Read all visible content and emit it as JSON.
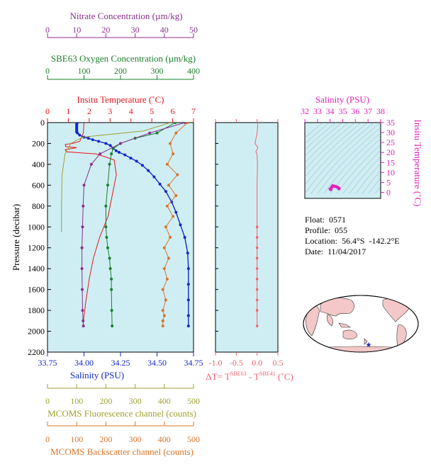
{
  "info": {
    "float": "Float:  0571",
    "profile": "Profile:  055",
    "location": "Location:  56.4°S  -142.2°E",
    "date": "Date:  11/04/2017"
  },
  "colors": {
    "nitrate": "#8b2f8b",
    "oxygen": "#1a7f2a",
    "temperature": "#e8141c",
    "salinity": "#1428c8",
    "fluorescence": "#a0a030",
    "backscatter": "#d8742a",
    "plot_bg": "#cfeef4",
    "delta_t": "#f06070",
    "ts_points": "#e020c0"
  },
  "chart_data": [
    {
      "type": "line",
      "panel": "main-profile",
      "ylabel": "Pressure (decibar)",
      "ylim": [
        2200,
        0
      ],
      "yticks": [
        0,
        200,
        400,
        600,
        800,
        1000,
        1200,
        1400,
        1600,
        1800,
        2000,
        2200
      ],
      "axes": {
        "nitrate": {
          "label": "Nitrate Concentration (µm/kg)",
          "lim": [
            0,
            50
          ],
          "ticks": [
            0,
            10,
            20,
            30,
            40,
            50
          ]
        },
        "oxygen": {
          "label": "SBE63 Oxygen Concentration (µm/kg)",
          "lim": [
            0,
            400
          ],
          "ticks": [
            0,
            100,
            200,
            300,
            400
          ]
        },
        "temperature": {
          "label": "Insitu Temperature (˚C)",
          "lim": [
            0,
            7
          ],
          "ticks": [
            0,
            1,
            2,
            3,
            4,
            5,
            6,
            7
          ]
        },
        "salinity": {
          "label": "Salinity (PSU)",
          "lim": [
            33.75,
            34.75
          ],
          "ticks": [
            "33.75",
            "34.00",
            "34.25",
            "34.50",
            "34.75"
          ]
        },
        "fluorescence": {
          "label": "MCOMS Fluorescence channel (counts)",
          "lim": [
            0,
            500
          ],
          "ticks": [
            0,
            100,
            200,
            300,
            400,
            500
          ]
        },
        "backscatter": {
          "label": "MCOMS Backscatter channel (counts)",
          "lim": [
            0,
            500
          ],
          "ticks": [
            0,
            100,
            200,
            300,
            400,
            500
          ]
        }
      },
      "series": [
        {
          "key": "temperature",
          "style": "line",
          "x": [
            1.75,
            1.72,
            1.55,
            1.2,
            0.85,
            0.88,
            1.4,
            0.85,
            0.9,
            1.6,
            2.3,
            2.8,
            3.2,
            3.3,
            3.1,
            2.9,
            2.5,
            2.2,
            2.0,
            1.85,
            1.75,
            1.7
          ],
          "y": [
            0,
            100,
            180,
            200,
            210,
            230,
            240,
            260,
            280,
            290,
            300,
            330,
            360,
            500,
            700,
            900,
            1100,
            1300,
            1500,
            1700,
            1850,
            1950
          ]
        },
        {
          "key": "salinity",
          "style": "line+points",
          "x": [
            33.955,
            33.955,
            33.97,
            34.0,
            34.03,
            34.06,
            34.1,
            34.15,
            34.18,
            34.2,
            34.22,
            34.24,
            34.28,
            34.32,
            34.36,
            34.4,
            34.44,
            34.48,
            34.52,
            34.56,
            34.6,
            34.63,
            34.66,
            34.69,
            34.71,
            34.715,
            34.715,
            34.715,
            34.715,
            34.715
          ],
          "y": [
            0,
            100,
            120,
            140,
            150,
            165,
            180,
            200,
            220,
            245,
            270,
            285,
            310,
            340,
            370,
            410,
            460,
            520,
            590,
            660,
            760,
            860,
            980,
            1100,
            1250,
            1400,
            1550,
            1700,
            1850,
            1950
          ]
        },
        {
          "key": "oxygen",
          "style": "line+points",
          "x": [
            350,
            300,
            240,
            200,
            180,
            175,
            170,
            165,
            160,
            160,
            162,
            165,
            170,
            172,
            175,
            175,
            176,
            177
          ],
          "y": [
            0,
            100,
            150,
            200,
            250,
            300,
            400,
            600,
            800,
            1000,
            1100,
            1200,
            1300,
            1400,
            1500,
            1600,
            1800,
            1950
          ]
        },
        {
          "key": "nitrate",
          "style": "line+points",
          "x": [
            47,
            35,
            25,
            18,
            15,
            12.5,
            12.2,
            12.0,
            11.8,
            11.8,
            11.9,
            12.0,
            12.2,
            12.3
          ],
          "y": [
            0,
            100,
            200,
            300,
            400,
            600,
            800,
            1000,
            1200,
            1400,
            1600,
            1800,
            1900,
            1950
          ]
        },
        {
          "key": "fluorescence",
          "style": "line",
          "x": [
            420,
            330,
            120,
            80,
            60,
            50,
            48,
            48,
            48
          ],
          "y": [
            0,
            80,
            140,
            200,
            300,
            500,
            800,
            1000,
            1050
          ]
        },
        {
          "key": "backscatter",
          "style": "line+points",
          "x": [
            480,
            440,
            420,
            430,
            410,
            445,
            415,
            440,
            410,
            430,
            405,
            420,
            400,
            415,
            400,
            410,
            395,
            405,
            395,
            400,
            395,
            395
          ],
          "y": [
            0,
            100,
            200,
            300,
            400,
            500,
            600,
            700,
            800,
            900,
            1000,
            1100,
            1200,
            1300,
            1400,
            1500,
            1600,
            1700,
            1800,
            1850,
            1900,
            1950
          ]
        }
      ]
    },
    {
      "type": "line",
      "panel": "delta-t",
      "xlabel": "ΔT= Tˢᴮᴱ⁶³ - Tˢᴮᴱ⁴¹ (˚C)",
      "xlabel_parts": [
        "ΔT= T",
        "SBE63",
        " - T",
        "SBE41",
        " (˚C)"
      ],
      "xlim": [
        -1.0,
        0.5
      ],
      "xticks": [
        "-1.0",
        "-0.5",
        "0.0",
        "0.5"
      ],
      "ylim": [
        2200,
        0
      ],
      "x": [
        0.02,
        0.0,
        -0.05,
        0.02,
        -0.03,
        0.0,
        0.01,
        0.0,
        0.0,
        0.0,
        0.0,
        0.0,
        0.0,
        0.0,
        0.0,
        0.0,
        0.0,
        0.0,
        0.0
      ],
      "y": [
        0,
        100,
        200,
        240,
        280,
        300,
        400,
        600,
        800,
        1000,
        1100,
        1200,
        1300,
        1400,
        1500,
        1600,
        1700,
        1800,
        1950
      ]
    },
    {
      "type": "scatter",
      "panel": "ts-diagram",
      "xlabel": "Salinity (PSU)",
      "ylabel": "Insitu Temperature (˚C)",
      "xlim": [
        32,
        38
      ],
      "ylim": [
        -3,
        35
      ],
      "xticks": [
        32,
        33,
        34,
        35,
        36,
        37,
        38
      ],
      "yticks": [
        0,
        5,
        10,
        15,
        20,
        25,
        30,
        35
      ],
      "x": [
        34.0,
        34.05,
        34.1,
        34.15,
        34.2,
        34.3,
        34.4,
        34.5,
        34.6,
        34.68,
        34.72,
        34.7
      ],
      "y": [
        1.7,
        1.4,
        2.2,
        2.8,
        3.3,
        3.2,
        3.0,
        2.8,
        2.5,
        2.2,
        2.0,
        1.8
      ]
    }
  ]
}
